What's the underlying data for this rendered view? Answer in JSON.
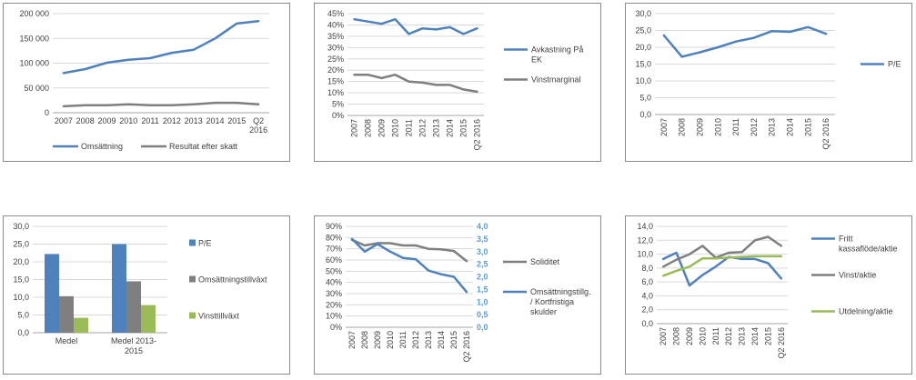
{
  "colors": {
    "blue": "#4f81bd",
    "gray": "#7f7f7f",
    "green": "#9bbb59",
    "right_axis": "#5b9bd5"
  },
  "chart_data": [
    {
      "id": "p1",
      "type": "line",
      "x": [
        "2007",
        "2008",
        "2009",
        "2010",
        "2011",
        "2012",
        "2013",
        "2014",
        "2015",
        "Q2 2016"
      ],
      "x_tick_rotate": false,
      "y_ticks": [
        "0",
        "50 000",
        "100 000",
        "150 000",
        "200 000"
      ],
      "ylim": [
        0,
        200000
      ],
      "grid": true,
      "legend_position": "bottom",
      "series": [
        {
          "name": "Omsättning",
          "color": "#4f81bd",
          "values": [
            80000,
            88000,
            101000,
            107000,
            110000,
            121000,
            127000,
            150000,
            180000,
            185000
          ]
        },
        {
          "name": "Resultat efter skatt",
          "color": "#7f7f7f",
          "values": [
            13000,
            15000,
            15000,
            17000,
            15000,
            15000,
            17000,
            20000,
            20000,
            17000
          ]
        }
      ]
    },
    {
      "id": "p2",
      "type": "line",
      "x": [
        "2007",
        "2008",
        "2009",
        "2010",
        "2011",
        "2012",
        "2013",
        "2014",
        "2015",
        "Q2 2016"
      ],
      "x_tick_rotate": true,
      "y_ticks": [
        "0%",
        "5%",
        "10%",
        "15%",
        "20%",
        "25%",
        "30%",
        "35%",
        "40%",
        "45%"
      ],
      "ylim": [
        0,
        45
      ],
      "grid": true,
      "legend_position": "right",
      "series": [
        {
          "name": "Avkastning På EK",
          "color": "#4f81bd",
          "values": [
            42.5,
            41.5,
            40.5,
            42.5,
            36,
            38.5,
            38,
            39,
            36,
            38.5
          ]
        },
        {
          "name": "Vinstmarginal",
          "color": "#7f7f7f",
          "values": [
            18,
            18,
            16.5,
            18,
            15,
            14.5,
            13.5,
            13.5,
            11.5,
            10.5
          ]
        }
      ]
    },
    {
      "id": "p3",
      "type": "line",
      "x": [
        "2007",
        "2008",
        "2009",
        "2010",
        "2011",
        "2012",
        "2013",
        "2014",
        "2015",
        "Q2 2016"
      ],
      "x_tick_rotate": true,
      "y_ticks": [
        "0,0",
        "5,0",
        "10,0",
        "15,0",
        "20,0",
        "25,0",
        "30,0"
      ],
      "ylim": [
        0,
        30
      ],
      "grid": true,
      "legend_position": "right",
      "series": [
        {
          "name": "P/E",
          "color": "#4f81bd",
          "values": [
            23.5,
            17.2,
            18.5,
            20,
            21.7,
            22.8,
            24.8,
            24.6,
            26,
            24
          ]
        }
      ]
    },
    {
      "id": "p4",
      "type": "bar",
      "categories": [
        "Medel",
        "Medel 2013-2015"
      ],
      "y_ticks": [
        "0,0",
        "5,0",
        "10,0",
        "15,0",
        "20,0",
        "25,0",
        "30,0"
      ],
      "ylim": [
        0,
        30
      ],
      "grid": true,
      "legend_position": "right",
      "series": [
        {
          "name": "P/E",
          "color": "#4f81bd",
          "values": [
            22.2,
            25
          ]
        },
        {
          "name": "Omsättningstillväxt",
          "color": "#7f7f7f",
          "values": [
            10.3,
            14.5
          ]
        },
        {
          "name": "Vinsttillväxt",
          "color": "#9bbb59",
          "values": [
            4.2,
            7.8
          ]
        }
      ]
    },
    {
      "id": "p5",
      "type": "line",
      "x": [
        "2007",
        "2008",
        "2009",
        "2010",
        "2011",
        "2012",
        "2013",
        "2014",
        "2015",
        "Q2 2016"
      ],
      "x_tick_rotate": true,
      "y_ticks": [
        "0%",
        "10%",
        "20%",
        "30%",
        "40%",
        "50%",
        "60%",
        "70%",
        "80%",
        "90%"
      ],
      "ylim": [
        0,
        90
      ],
      "y2_ticks": [
        "0,0",
        "0,5",
        "1,0",
        "1,5",
        "2,0",
        "2,5",
        "3,0",
        "3,5",
        "4,0"
      ],
      "y2lim": [
        0,
        4
      ],
      "grid": true,
      "legend_position": "right",
      "series": [
        {
          "name": "Soliditet",
          "color": "#7f7f7f",
          "axis": "left",
          "values": [
            78,
            73,
            75,
            75,
            73,
            73,
            70,
            69.5,
            68,
            59
          ]
        },
        {
          "name": "Omsättningstillg. / Kortfristiga skulder",
          "color": "#4f81bd",
          "axis": "right",
          "values": [
            3.5,
            3.0,
            3.3,
            3.0,
            2.75,
            2.7,
            2.25,
            2.1,
            2.0,
            1.4
          ]
        }
      ]
    },
    {
      "id": "p6",
      "type": "line",
      "x": [
        "2007",
        "2008",
        "2009",
        "2010",
        "2011",
        "2012",
        "2013",
        "2014",
        "2015",
        "Q2 2016"
      ],
      "x_tick_rotate": true,
      "y_ticks": [
        "0,0",
        "2,0",
        "4,0",
        "6,0",
        "8,0",
        "10,0",
        "12,0",
        "14,0"
      ],
      "ylim": [
        0,
        14
      ],
      "grid": true,
      "legend_position": "right",
      "series": [
        {
          "name": "Fritt kassaflöde/aktie",
          "color": "#4f81bd",
          "values": [
            9.3,
            10.2,
            5.5,
            7.0,
            8.2,
            9.6,
            9.3,
            9.3,
            8.7,
            6.5
          ]
        },
        {
          "name": "Vinst/aktie",
          "color": "#7f7f7f",
          "values": [
            8.2,
            9.2,
            10.0,
            11.2,
            9.5,
            10.2,
            10.3,
            12.0,
            12.5,
            11.2
          ]
        },
        {
          "name": "Utdelning/aktie",
          "color": "#9bbb59",
          "values": [
            6.9,
            7.6,
            8.2,
            9.4,
            9.4,
            9.5,
            9.6,
            9.7,
            9.7,
            9.7
          ]
        }
      ]
    }
  ]
}
